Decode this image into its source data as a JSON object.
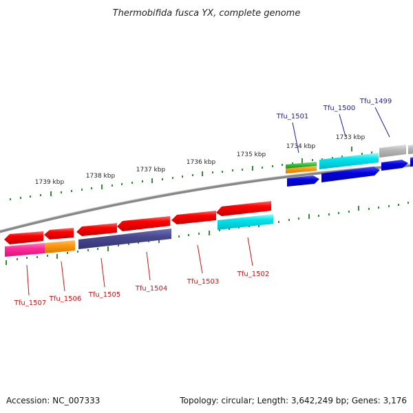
{
  "title": "Thermobifida fusca YX, complete genome",
  "footer": {
    "accession": "Accession: NC_007333",
    "info": "Topology: circular; Length: 3,642,249 bp; Genes: 3,176"
  },
  "colors": {
    "backbone": "#888888",
    "tick": "#2e8b2e",
    "label_forward": "#1a1aa8",
    "label_reverse": "#c81010"
  },
  "ruler_labels": [
    {
      "id": "1739",
      "text": "1739 kbp"
    },
    {
      "id": "1738",
      "text": "1738 kbp"
    },
    {
      "id": "1737",
      "text": "1737 kbp"
    },
    {
      "id": "1736",
      "text": "1736 kbp"
    },
    {
      "id": "1735",
      "text": "1735 kbp"
    },
    {
      "id": "1734",
      "text": "1734 kbp"
    },
    {
      "id": "1733",
      "text": "1733 kbp"
    }
  ],
  "gene_labels": [
    {
      "id": "tfu1499",
      "text": "Tfu_1499",
      "strand": "forward"
    },
    {
      "id": "tfu1500",
      "text": "Tfu_1500",
      "strand": "forward"
    },
    {
      "id": "tfu1501",
      "text": "Tfu_1501",
      "strand": "forward"
    },
    {
      "id": "tfu1502",
      "text": "Tfu_1502",
      "strand": "reverse"
    },
    {
      "id": "tfu1503",
      "text": "Tfu_1503",
      "strand": "reverse"
    },
    {
      "id": "tfu1504",
      "text": "Tfu_1504",
      "strand": "reverse"
    },
    {
      "id": "tfu1505",
      "text": "Tfu_1505",
      "strand": "reverse"
    },
    {
      "id": "tfu1506",
      "text": "Tfu_1506",
      "strand": "reverse"
    },
    {
      "id": "tfu1507",
      "text": "Tfu_1507",
      "strand": "reverse"
    }
  ]
}
